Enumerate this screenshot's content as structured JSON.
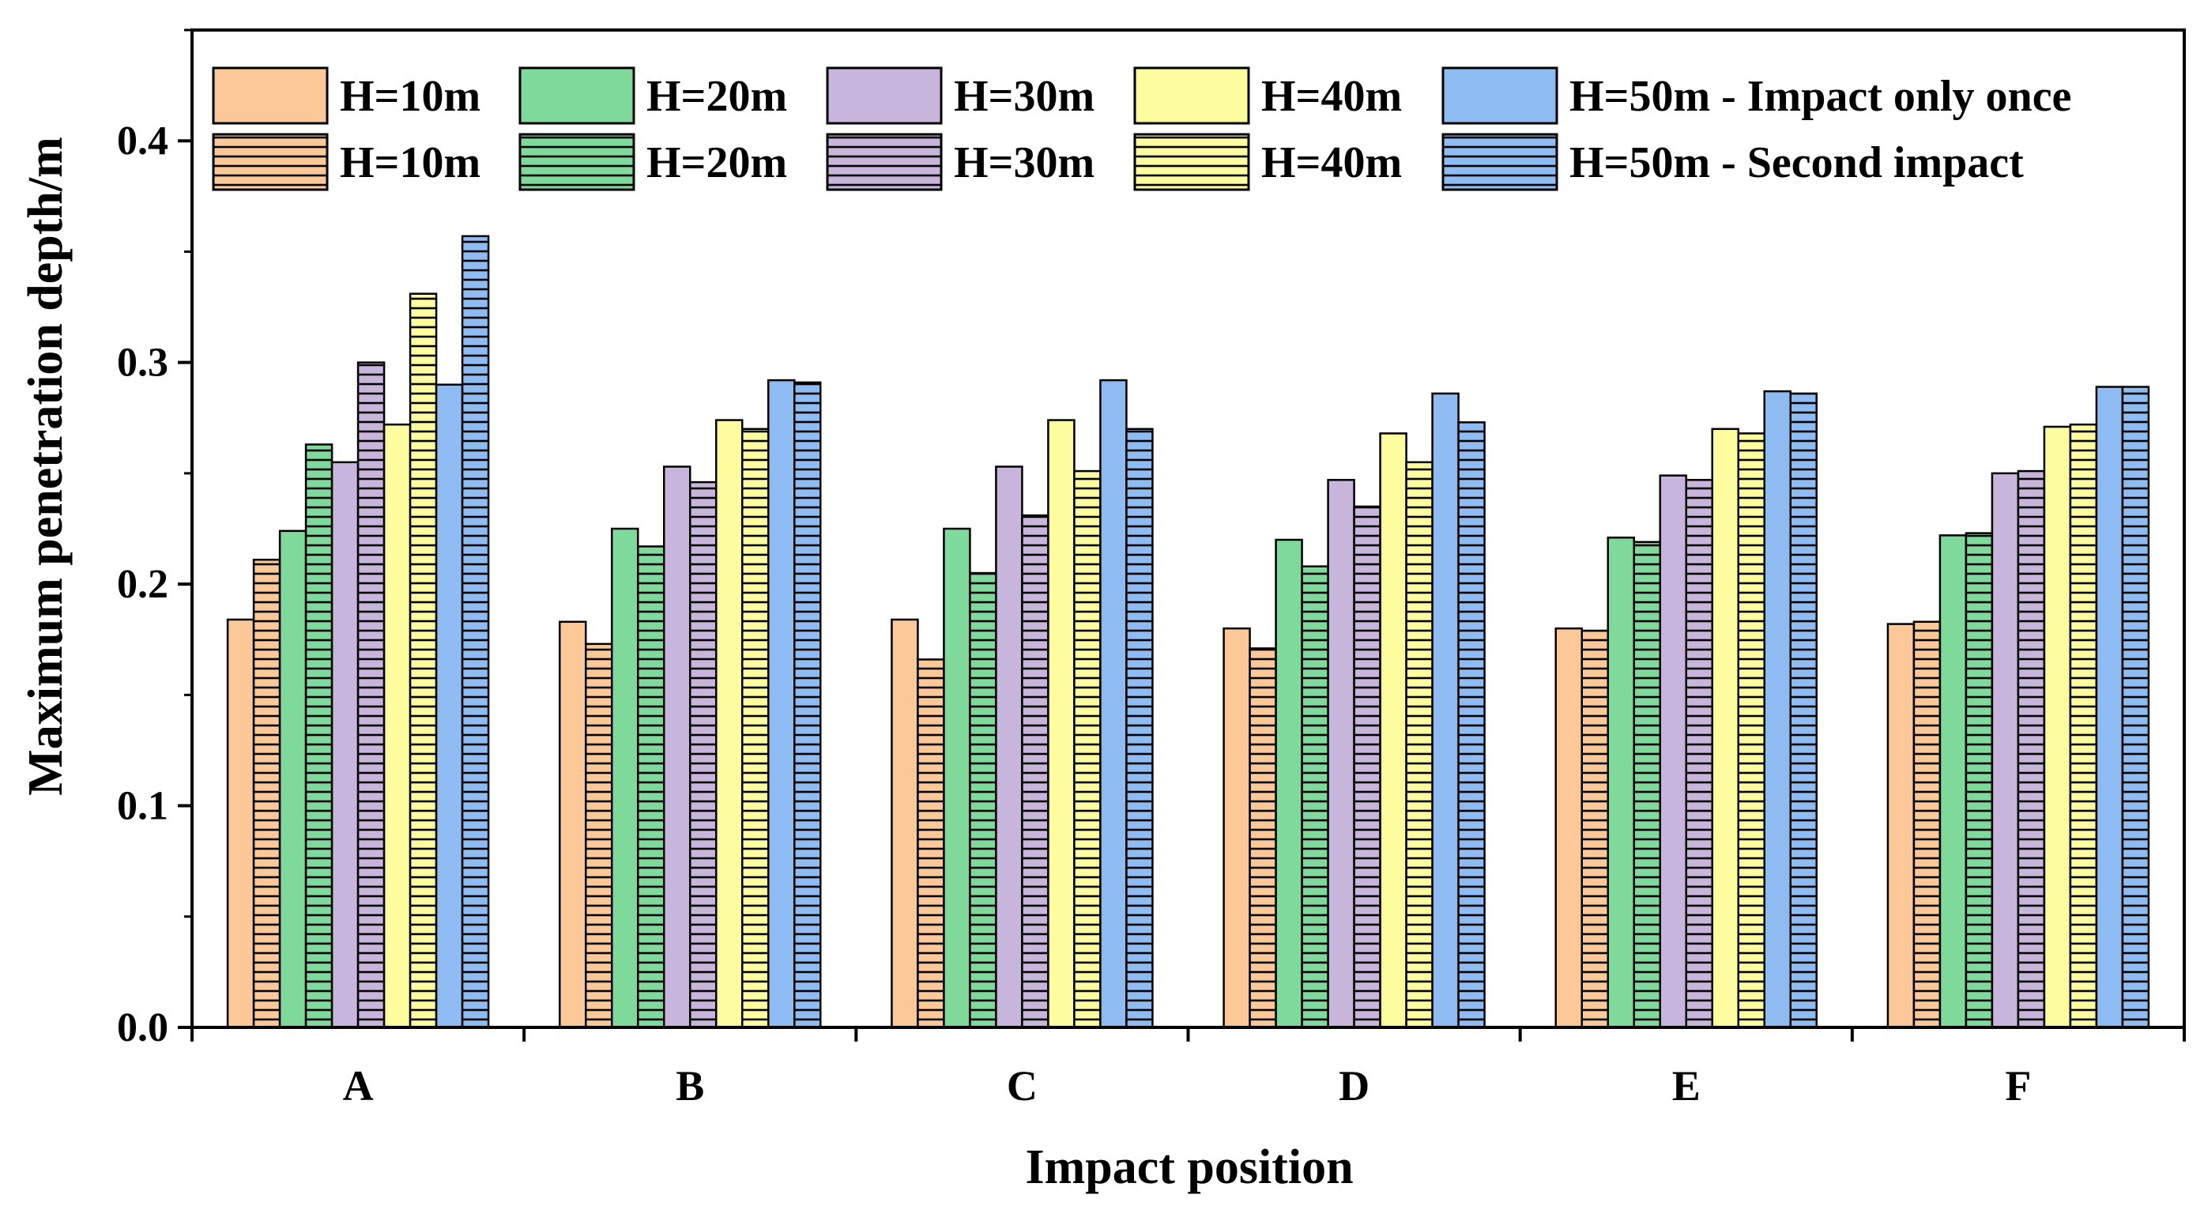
{
  "chart_data": {
    "type": "bar",
    "title": "",
    "xlabel": "Impact position",
    "ylabel": "Maximum penetration depth/m",
    "categories": [
      "A",
      "B",
      "C",
      "D",
      "E",
      "F"
    ],
    "ylim": [
      0,
      0.45
    ],
    "yticks": [
      "0.0",
      "0.1",
      "0.2",
      "0.3",
      "0.4"
    ],
    "legend_position": "top-left",
    "series": [
      {
        "name": "H=10m",
        "group": "Impact only once",
        "color": "#FDC897",
        "hatched": false,
        "values": [
          0.184,
          0.183,
          0.184,
          0.18,
          0.18,
          0.182
        ]
      },
      {
        "name": "H=10m",
        "group": "Second impact",
        "color": "#FDC897",
        "hatched": true,
        "values": [
          0.211,
          0.173,
          0.166,
          0.171,
          0.179,
          0.183
        ]
      },
      {
        "name": "H=20m",
        "group": "Impact only once",
        "color": "#7ED99A",
        "hatched": false,
        "values": [
          0.224,
          0.225,
          0.225,
          0.22,
          0.221,
          0.222
        ]
      },
      {
        "name": "H=20m",
        "group": "Second impact",
        "color": "#7ED99A",
        "hatched": true,
        "values": [
          0.263,
          0.217,
          0.205,
          0.208,
          0.219,
          0.223
        ]
      },
      {
        "name": "H=30m",
        "group": "Impact only once",
        "color": "#C8B5DB",
        "hatched": false,
        "values": [
          0.255,
          0.253,
          0.253,
          0.247,
          0.249,
          0.25
        ]
      },
      {
        "name": "H=30m",
        "group": "Second impact",
        "color": "#C8B5DB",
        "hatched": true,
        "values": [
          0.3,
          0.246,
          0.231,
          0.235,
          0.247,
          0.251
        ]
      },
      {
        "name": "H=40m",
        "group": "Impact only once",
        "color": "#FDFC9E",
        "hatched": false,
        "values": [
          0.272,
          0.274,
          0.274,
          0.268,
          0.27,
          0.271
        ]
      },
      {
        "name": "H=40m",
        "group": "Second impact",
        "color": "#FDFC9E",
        "hatched": true,
        "values": [
          0.331,
          0.27,
          0.251,
          0.255,
          0.268,
          0.272
        ]
      },
      {
        "name": "H=50m",
        "group": "Impact only once",
        "color": "#8EBBF2",
        "hatched": false,
        "values": [
          0.29,
          0.292,
          0.292,
          0.286,
          0.287,
          0.289
        ]
      },
      {
        "name": "H=50m",
        "group": "Second impact",
        "color": "#8EBBF2",
        "hatched": true,
        "values": [
          0.357,
          0.291,
          0.27,
          0.273,
          0.286,
          0.289
        ]
      }
    ],
    "legend": [
      {
        "label": "H=10m",
        "color": "#FDC897",
        "hatched": false
      },
      {
        "label": "H=20m",
        "color": "#7ED99A",
        "hatched": false
      },
      {
        "label": "H=30m",
        "color": "#C8B5DB",
        "hatched": false
      },
      {
        "label": "H=40m",
        "color": "#FDFC9E",
        "hatched": false
      },
      {
        "label": "H=50m - Impact only once",
        "color": "#8EBBF2",
        "hatched": false
      },
      {
        "label": "H=10m",
        "color": "#FDC897",
        "hatched": true
      },
      {
        "label": "H=20m",
        "color": "#7ED99A",
        "hatched": true
      },
      {
        "label": "H=30m",
        "color": "#C8B5DB",
        "hatched": true
      },
      {
        "label": "H=40m",
        "color": "#FDFC9E",
        "hatched": true
      },
      {
        "label": "H=50m - Second impact",
        "color": "#8EBBF2",
        "hatched": true
      }
    ]
  }
}
